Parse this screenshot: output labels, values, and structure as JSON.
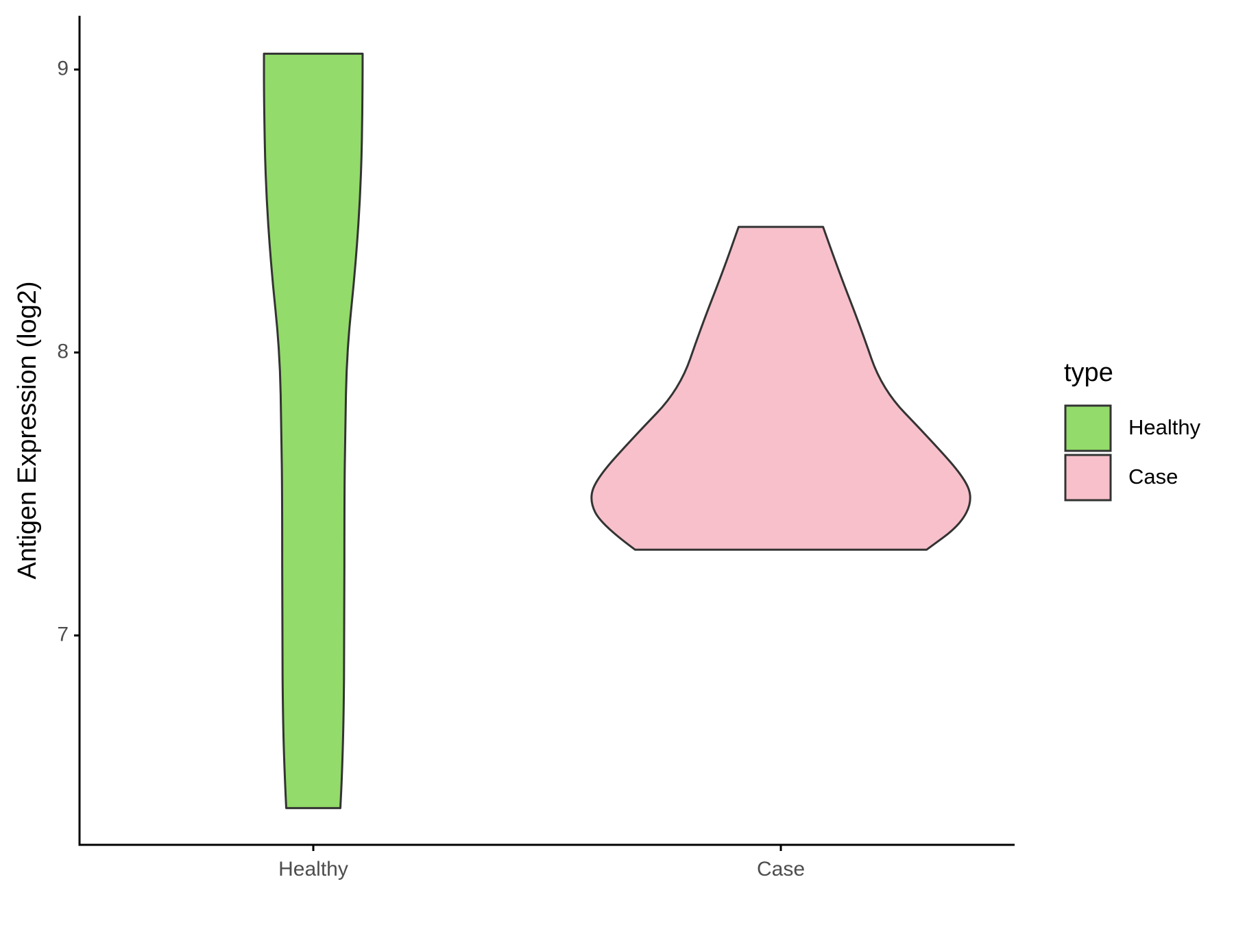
{
  "chart_data": {
    "type": "violin",
    "y_label": "Antigen Expression (log2)",
    "categories": [
      "Healthy",
      "Case"
    ],
    "legend_title": "type",
    "ylim": [
      6.26,
      9.19
    ],
    "yticks": [
      7,
      8,
      9
    ],
    "series": [
      {
        "name": "Healthy",
        "color": "#93db6a",
        "y": [
          9.056,
          8.9,
          8.6,
          8.3,
          8.0,
          7.7,
          7.5,
          7.0,
          6.7,
          6.5,
          6.39
        ],
        "width": [
          0.257,
          0.257,
          0.249,
          0.22,
          0.174,
          0.166,
          0.162,
          0.162,
          0.158,
          0.149,
          0.141
        ]
      },
      {
        "name": "Case",
        "color": "#f7c0cb",
        "y": [
          8.444,
          8.29,
          8.09,
          7.87,
          7.7,
          7.56,
          7.48,
          7.39,
          7.303
        ],
        "width": [
          0.22,
          0.3,
          0.415,
          0.527,
          0.768,
          0.954,
          1.0,
          0.934,
          0.759
        ]
      }
    ]
  }
}
